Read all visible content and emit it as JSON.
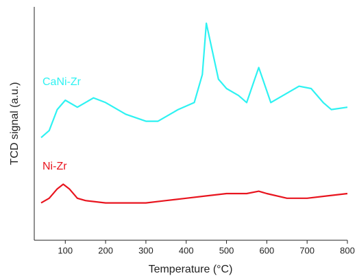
{
  "chart_data": {
    "type": "line",
    "x_label": "Temperature (°C)",
    "y_label": "TCD signal (a.u.)",
    "xlim": [
      23,
      800
    ],
    "xticks": [
      100,
      200,
      300,
      400,
      500,
      600,
      700,
      800
    ],
    "ylim": [
      0,
      100
    ],
    "series": [
      {
        "name": "CaNi-Zr",
        "color": "#2ef2f2",
        "x": [
          40,
          60,
          80,
          100,
          130,
          170,
          200,
          250,
          300,
          330,
          380,
          420,
          440,
          450,
          460,
          480,
          500,
          530,
          550,
          570,
          580,
          590,
          610,
          640,
          680,
          710,
          740,
          760,
          800
        ],
        "values": [
          44,
          47,
          56,
          60,
          57,
          61,
          59,
          54,
          51,
          51,
          56,
          59,
          71,
          93,
          85,
          69,
          65,
          62,
          59,
          69,
          74,
          69,
          59,
          62,
          66,
          65,
          59,
          56,
          57
        ]
      },
      {
        "name": "Ni-Zr",
        "color": "#e8141e",
        "x": [
          40,
          60,
          80,
          95,
          110,
          130,
          150,
          200,
          250,
          300,
          350,
          400,
          450,
          500,
          550,
          580,
          600,
          650,
          700,
          750,
          800
        ],
        "values": [
          16,
          18,
          22,
          24,
          22,
          18,
          17,
          16,
          16,
          16,
          17,
          18,
          19,
          20,
          20,
          21,
          20,
          18,
          18,
          19,
          20
        ]
      }
    ]
  }
}
